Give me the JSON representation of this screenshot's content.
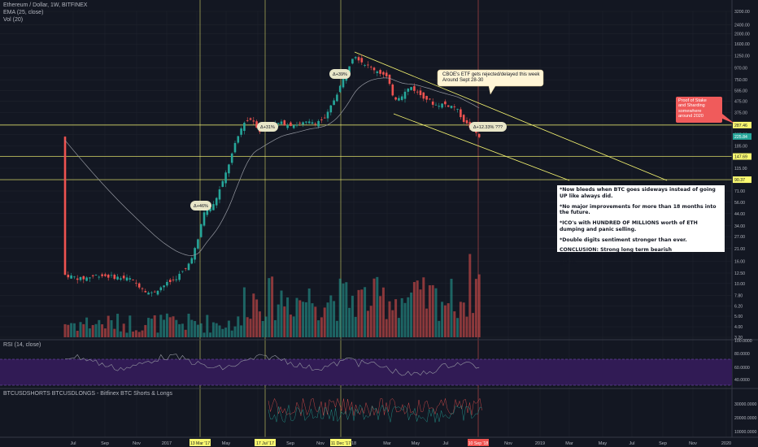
{
  "header": {
    "title": "Ethereum / Dollar, 1W, BITFINEX",
    "indicator_ema": "EMA (25, close)",
    "indicator_vol": "Vol (20)",
    "rsi_label": "RSI (14, close)",
    "shorts_label": "BTCUSDSHORTS BTCUSDLONGS - Bitfinex BTC Shorts & Longs"
  },
  "chart_data": {
    "type": "candlestick",
    "scale": "log",
    "y_ticks": [
      "3200.00",
      "2400.00",
      "2000.00",
      "1600.00",
      "1250.00",
      "970.00",
      "750.00",
      "595.00",
      "475.00",
      "375.00",
      "295.00",
      "235.00",
      "185.00",
      "150.00",
      "115.00",
      "91.00",
      "71.00",
      "56.00",
      "44.00",
      "34.00",
      "27.00",
      "21.00",
      "16.00",
      "12.50",
      "10.00",
      "7.80",
      "6.20",
      "5.00",
      "4.00",
      "3.20"
    ],
    "x_ticks": [
      "Jul",
      "Sep",
      "Nov",
      "2017",
      "Mar",
      "May",
      "Jul",
      "Sep",
      "Nov",
      "18",
      "Mar",
      "May",
      "Jul",
      "Sep",
      "Nov",
      "2019",
      "Mar",
      "May",
      "Jul",
      "Sep",
      "Nov",
      "2020"
    ],
    "highlighted_dates": [
      "13 Mar '17",
      "17 Jul '17",
      "11 Dec '17",
      "10 Sep '18"
    ],
    "price_labels": [
      {
        "value": "287.46",
        "color": "#f9f871"
      },
      {
        "value": "225.84",
        "color": "#26a69a"
      },
      {
        "value": "147.69",
        "color": "#f9f871"
      },
      {
        "value": "90.37",
        "color": "#f9f871"
      }
    ],
    "horizontal_levels": [
      287.46,
      147.69,
      90.37
    ],
    "rsi_ticks": [
      "100.0000",
      "80.0000",
      "60.0000",
      "40.0000"
    ],
    "shorts_ticks": [
      "30000.0000",
      "20000.0000",
      "10000.0000"
    ],
    "callouts": [
      "Δ+46%",
      "Δ+31%",
      "Δ+39%",
      "Δ+12.33% ???"
    ]
  },
  "notes": {
    "etf": "CBOE's ETF gets rejected/delayed this week\nAround Sept 28-30",
    "pos": "Proof of Stake\nand Sharding\nsomewhere\naround 2020"
  },
  "analysis": [
    "*Now bleeds when BTC goes sideways instead of going UP like always did.",
    "*No major improvements for more than 18  months into the future.",
    "*ICO's with HUNDRED OF MILLIONS worth of ETH dumping and panic selling.",
    "*Double digits sentiment stronger than ever.",
    "CONCLUSION: Strong long term bearish signals,movements and sentiment, very dangerous to get in."
  ],
  "colors": {
    "up": "#26a69a",
    "down": "#ef5350",
    "level": "#f9f871",
    "rsi_band": "#311b55",
    "bg": "#131722"
  }
}
